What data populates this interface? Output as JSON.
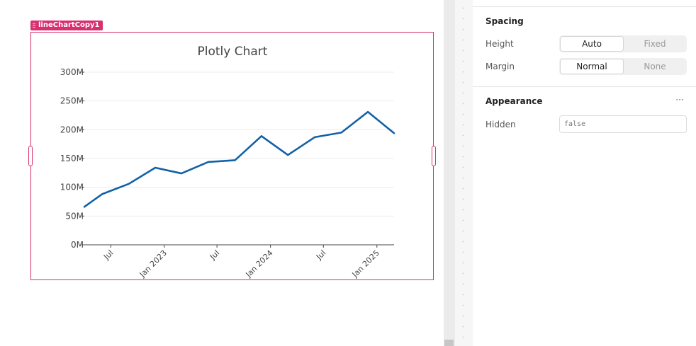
{
  "component": {
    "name": "lineChartCopy1"
  },
  "chart_data": {
    "type": "line",
    "title": "Plotly Chart",
    "xlabel": "",
    "ylabel": "",
    "x": [
      "2022-04-01",
      "2022-06-01",
      "2022-09-01",
      "2022-12-01",
      "2023-03-01",
      "2023-06-01",
      "2023-09-01",
      "2023-12-01",
      "2024-03-01",
      "2024-06-01",
      "2024-09-01",
      "2024-12-01",
      "2025-03-01"
    ],
    "series": [
      {
        "values": [
          66000000,
          88000000,
          106000000,
          134000000,
          124000000,
          144000000,
          147000000,
          189000000,
          156000000,
          187000000,
          195000000,
          231000000,
          194000000
        ],
        "color": "#1261a6"
      }
    ],
    "ylim": [
      0,
      300000000
    ],
    "yticks": [
      0,
      50000000,
      100000000,
      150000000,
      200000000,
      250000000,
      300000000
    ],
    "ytick_labels": [
      "0M",
      "50M",
      "100M",
      "150M",
      "200M",
      "250M",
      "300M"
    ],
    "xticks": [
      "2022-07-01",
      "2023-01-01",
      "2023-07-01",
      "2024-01-01",
      "2024-07-01",
      "2025-01-01"
    ],
    "xtick_labels": [
      "Jul",
      "Jan 2023",
      "Jul",
      "Jan 2024",
      "Jul",
      "Jan 2025"
    ],
    "xlim": [
      "2022-04-01",
      "2025-03-01"
    ],
    "grid": true,
    "legend": "none"
  },
  "inspector": {
    "spacing": {
      "title": "Spacing",
      "height": {
        "label": "Height",
        "options": [
          "Auto",
          "Fixed"
        ],
        "selected": "Auto"
      },
      "margin": {
        "label": "Margin",
        "options": [
          "Normal",
          "None"
        ],
        "selected": "Normal"
      }
    },
    "appearance": {
      "title": "Appearance",
      "more_icon": "more-horizontal-icon",
      "more_label": "···",
      "hidden": {
        "label": "Hidden",
        "value": "false"
      }
    }
  },
  "colors": {
    "selection_accent": "#d8306f",
    "line": "#1261a6"
  }
}
